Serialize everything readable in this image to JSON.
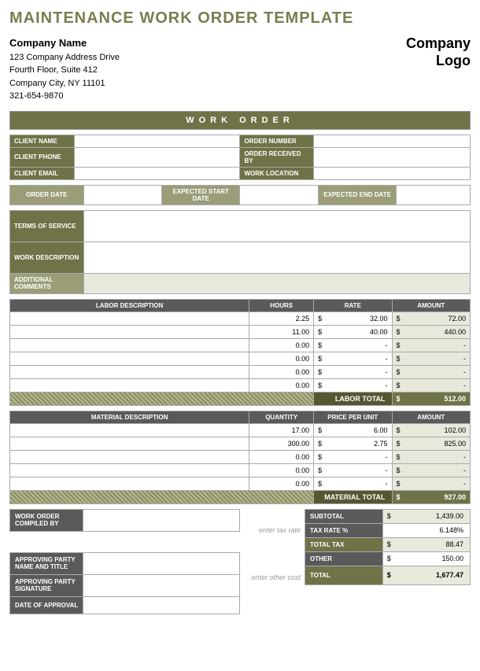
{
  "title": "MAINTENANCE WORK ORDER TEMPLATE",
  "company": {
    "name": "Company Name",
    "addr1": "123 Company Address Drive",
    "addr2": "Fourth Floor, Suite 412",
    "addr3": "Company City, NY  11101",
    "phone": "321-654-9870"
  },
  "logo": {
    "l1": "Company",
    "l2": "Logo"
  },
  "bar": "WORK ORDER",
  "client_labels": {
    "name": "CLIENT NAME",
    "phone": "CLIENT PHONE",
    "email": "CLIENT EMAIL",
    "order_num": "ORDER NUMBER",
    "received": "ORDER RECEIVED BY",
    "location": "WORK LOCATION"
  },
  "date_labels": {
    "order": "ORDER DATE",
    "start": "EXPECTED START DATE",
    "end": "EXPECTED END DATE"
  },
  "desc_labels": {
    "terms": "TERMS OF SERVICE",
    "work": "WORK DESCRIPTION",
    "comments": "ADDITIONAL COMMENTS"
  },
  "labor": {
    "headers": {
      "desc": "LABOR DESCRIPTION",
      "hours": "HOURS",
      "rate": "RATE",
      "amount": "AMOUNT"
    },
    "rows": [
      {
        "desc": "",
        "hours": "2.25",
        "rate": "32.00",
        "amount": "72.00"
      },
      {
        "desc": "",
        "hours": "11.00",
        "rate": "40.00",
        "amount": "440.00"
      },
      {
        "desc": "",
        "hours": "0.00",
        "rate": "-",
        "amount": "-"
      },
      {
        "desc": "",
        "hours": "0.00",
        "rate": "-",
        "amount": "-"
      },
      {
        "desc": "",
        "hours": "0.00",
        "rate": "-",
        "amount": "-"
      },
      {
        "desc": "",
        "hours": "0.00",
        "rate": "-",
        "amount": "-"
      }
    ],
    "total_label": "LABOR TOTAL",
    "total": "512.00"
  },
  "material": {
    "headers": {
      "desc": "MATERIAL DESCRIPTION",
      "qty": "QUANTITY",
      "price": "PRICE PER UNIT",
      "amount": "AMOUNT"
    },
    "rows": [
      {
        "desc": "",
        "qty": "17.00",
        "price": "6.00",
        "amount": "102.00"
      },
      {
        "desc": "",
        "qty": "300.00",
        "price": "2.75",
        "amount": "825.00"
      },
      {
        "desc": "",
        "qty": "0.00",
        "price": "-",
        "amount": "-"
      },
      {
        "desc": "",
        "qty": "0.00",
        "price": "-",
        "amount": "-"
      },
      {
        "desc": "",
        "qty": "0.00",
        "price": "-",
        "amount": "-"
      }
    ],
    "total_label": "MATERIAL TOTAL",
    "total": "927.00"
  },
  "footer": {
    "compiled": "WORK ORDER COMPILED BY",
    "approve_name": "APPROVING PARTY NAME AND TITLE",
    "approve_sig": "APPROVING PARTY SIGNATURE",
    "approve_date": "DATE OF APPROVAL",
    "hint_tax": "enter tax rate",
    "hint_other": "enter other cost"
  },
  "summary": {
    "subtotal_l": "SUBTOTAL",
    "subtotal": "1,439.00",
    "rate_l": "TAX RATE %",
    "rate": "6.148%",
    "tax_l": "TOTAL TAX",
    "tax": "88.47",
    "other_l": "OTHER",
    "other": "150.00",
    "total_l": "TOTAL",
    "total": "1,677.47"
  },
  "dollar": "$"
}
